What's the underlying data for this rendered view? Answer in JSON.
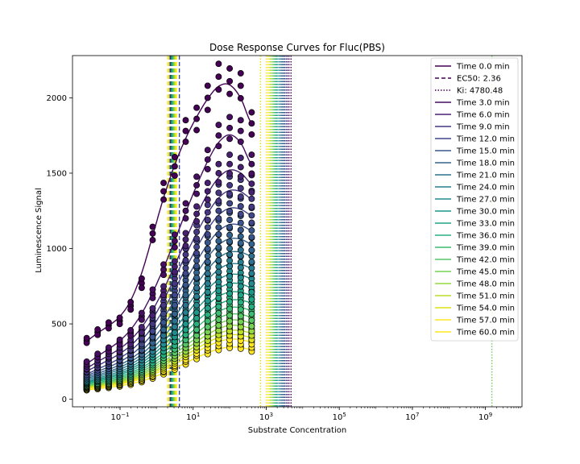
{
  "chart_data": {
    "type": "scatter",
    "title": "Dose Response Curves for Fluc(PBS)",
    "xlabel": "Substrate Concentration",
    "ylabel": "Luminescence Signal",
    "xscale": "log",
    "xlim": [
      0.005,
      10000000000.0
    ],
    "ylim": [
      -50,
      2280
    ],
    "grid": false,
    "legend_position": "top-right",
    "x_ticks": [
      {
        "value": 0.1,
        "base": "10",
        "exp": "−1"
      },
      {
        "value": 10,
        "base": "10",
        "exp": "1"
      },
      {
        "value": 1000,
        "base": "10",
        "exp": "3"
      },
      {
        "value": 100000,
        "base": "10",
        "exp": "5"
      },
      {
        "value": 10000000,
        "base": "10",
        "exp": "7"
      },
      {
        "value": 1000000000,
        "base": "10",
        "exp": "9"
      }
    ],
    "y_ticks": [
      0,
      500,
      1000,
      1500,
      2000
    ],
    "concentrations": [
      0.0122,
      0.0244,
      0.0488,
      0.0977,
      0.195,
      0.391,
      0.781,
      1.56,
      3.13,
      6.25,
      12.5,
      25,
      50,
      100,
      200,
      400
    ],
    "fit_x_max": 400,
    "colormap": "viridis",
    "legend": [
      {
        "label": "Time 0.0 min",
        "style": "solid",
        "color": "#440154"
      },
      {
        "label": "EC50: 2.36",
        "style": "dashed",
        "color": "#440154"
      },
      {
        "label": "Ki: 4780.48",
        "style": "dotted",
        "color": "#440154"
      },
      {
        "label": "Time 3.0 min",
        "style": "solid",
        "color": "#470d60"
      },
      {
        "label": "Time 6.0 min",
        "style": "solid",
        "color": "#482071"
      },
      {
        "label": "Time 9.0 min",
        "style": "solid",
        "color": "#453781"
      },
      {
        "label": "Time 12.0 min",
        "style": "solid",
        "color": "#3f4788"
      },
      {
        "label": "Time 15.0 min",
        "style": "solid",
        "color": "#39568c"
      },
      {
        "label": "Time 18.0 min",
        "style": "solid",
        "color": "#33638d"
      },
      {
        "label": "Time 21.0 min",
        "style": "solid",
        "color": "#2d718e"
      },
      {
        "label": "Time 24.0 min",
        "style": "solid",
        "color": "#287d8e"
      },
      {
        "label": "Time 27.0 min",
        "style": "solid",
        "color": "#238a8d"
      },
      {
        "label": "Time 30.0 min",
        "style": "solid",
        "color": "#1f968b"
      },
      {
        "label": "Time 33.0 min",
        "style": "solid",
        "color": "#20a386"
      },
      {
        "label": "Time 36.0 min",
        "style": "solid",
        "color": "#29af7f"
      },
      {
        "label": "Time 39.0 min",
        "style": "solid",
        "color": "#3dbc74"
      },
      {
        "label": "Time 42.0 min",
        "style": "solid",
        "color": "#56c667"
      },
      {
        "label": "Time 45.0 min",
        "style": "solid",
        "color": "#75d054"
      },
      {
        "label": "Time 48.0 min",
        "style": "solid",
        "color": "#95d840"
      },
      {
        "label": "Time 51.0 min",
        "style": "solid",
        "color": "#bade28"
      },
      {
        "label": "Time 54.0 min",
        "style": "solid",
        "color": "#dde318"
      },
      {
        "label": "Time 57.0 min",
        "style": "solid",
        "color": "#fde725"
      },
      {
        "label": "Time 60.0 min",
        "style": "solid",
        "color": "#fde725"
      }
    ],
    "series": [
      {
        "name": "Time 0.0 min",
        "color": "#440154",
        "ec50": 2.36,
        "ki": 4780.48,
        "y": [
          390,
          445,
          490,
          520,
          620,
          770,
          1100,
          1380,
          1545,
          1780,
          1860,
          2000,
          2140,
          2110,
          2080,
          1830
        ]
      },
      {
        "name": "Time 3.0 min",
        "color": "#470d60",
        "ec50": 2.8,
        "ki": 4200,
        "y": [
          240,
          290,
          330,
          380,
          440,
          550,
          700,
          860,
          1050,
          1250,
          1420,
          1590,
          1750,
          1800,
          1780,
          1560
        ]
      },
      {
        "name": "Time 6.0 min",
        "color": "#482071",
        "ec50": 2.7,
        "ki": 3800,
        "y": [
          210,
          250,
          290,
          330,
          380,
          460,
          580,
          720,
          880,
          1060,
          1230,
          1380,
          1500,
          1560,
          1540,
          1430
        ]
      },
      {
        "name": "Time 9.0 min",
        "color": "#453781",
        "ec50": 2.6,
        "ki": 3500,
        "y": [
          190,
          220,
          260,
          300,
          340,
          420,
          520,
          650,
          800,
          960,
          1110,
          1240,
          1370,
          1420,
          1400,
          1330
        ]
      },
      {
        "name": "Time 12.0 min",
        "color": "#3f4788",
        "ec50": 2.6,
        "ki": 3200,
        "y": [
          170,
          200,
          230,
          270,
          310,
          380,
          470,
          590,
          720,
          870,
          1010,
          1140,
          1250,
          1300,
          1280,
          1220
        ]
      },
      {
        "name": "Time 15.0 min",
        "color": "#39568c",
        "ec50": 2.5,
        "ki": 3000,
        "y": [
          160,
          185,
          210,
          245,
          285,
          340,
          430,
          530,
          650,
          790,
          920,
          1040,
          1140,
          1190,
          1170,
          1120
        ]
      },
      {
        "name": "Time 18.0 min",
        "color": "#33638d",
        "ec50": 2.5,
        "ki": 2800,
        "y": [
          150,
          170,
          195,
          225,
          260,
          310,
          390,
          480,
          590,
          720,
          840,
          950,
          1050,
          1090,
          1080,
          1030
        ]
      },
      {
        "name": "Time 21.0 min",
        "color": "#2d718e",
        "ec50": 2.5,
        "ki": 2600,
        "y": [
          140,
          160,
          180,
          210,
          240,
          290,
          360,
          440,
          540,
          650,
          770,
          870,
          960,
          1000,
          990,
          950
        ]
      },
      {
        "name": "Time 24.0 min",
        "color": "#287d8e",
        "ec50": 2.6,
        "ki": 2400,
        "y": [
          130,
          150,
          170,
          195,
          225,
          270,
          330,
          410,
          500,
          600,
          710,
          800,
          880,
          920,
          910,
          870
        ]
      },
      {
        "name": "Time 27.0 min",
        "color": "#238a8d",
        "ec50": 2.6,
        "ki": 2200,
        "y": [
          120,
          140,
          160,
          180,
          210,
          250,
          310,
          380,
          460,
          560,
          650,
          740,
          810,
          850,
          840,
          800
        ]
      },
      {
        "name": "Time 30.0 min",
        "color": "#1f968b",
        "ec50": 2.7,
        "ki": 2000,
        "y": [
          115,
          130,
          150,
          170,
          195,
          235,
          290,
          355,
          430,
          520,
          600,
          680,
          750,
          790,
          780,
          740
        ]
      },
      {
        "name": "Time 33.0 min",
        "color": "#20a386",
        "ec50": 2.7,
        "ki": 1900,
        "y": [
          110,
          125,
          140,
          160,
          185,
          220,
          270,
          330,
          400,
          480,
          560,
          630,
          700,
          730,
          720,
          690
        ]
      },
      {
        "name": "Time 36.0 min",
        "color": "#29af7f",
        "ec50": 2.8,
        "ki": 1800,
        "y": [
          105,
          118,
          132,
          150,
          172,
          205,
          250,
          305,
          370,
          445,
          520,
          585,
          640,
          675,
          670,
          640
        ]
      },
      {
        "name": "Time 39.0 min",
        "color": "#3dbc74",
        "ec50": 2.8,
        "ki": 1700,
        "y": [
          98,
          110,
          124,
          140,
          162,
          192,
          235,
          285,
          345,
          410,
          480,
          540,
          595,
          625,
          620,
          590
        ]
      },
      {
        "name": "Time 42.0 min",
        "color": "#56c667",
        "ec50": 2.9,
        "ki": 1600,
        "y": [
          92,
          104,
          117,
          132,
          152,
          180,
          220,
          265,
          320,
          380,
          440,
          500,
          550,
          580,
          575,
          545
        ]
      },
      {
        "name": "Time 45.0 min",
        "color": "#75d054",
        "ec50": 3.0,
        "ki": 1500,
        "y": [
          88,
          98,
          110,
          125,
          143,
          170,
          205,
          250,
          300,
          355,
          410,
          465,
          510,
          540,
          535,
          505
        ]
      },
      {
        "name": "Time 48.0 min",
        "color": "#95d840",
        "ec50": 3.1,
        "ki": 1400,
        "y": [
          84,
          93,
          104,
          118,
          135,
          160,
          193,
          235,
          280,
          330,
          385,
          435,
          475,
          505,
          500,
          470
        ]
      },
      {
        "name": "Time 51.0 min",
        "color": "#bade28",
        "ec50": 3.2,
        "ki": 1300,
        "y": [
          80,
          88,
          98,
          112,
          127,
          150,
          182,
          220,
          262,
          310,
          360,
          405,
          445,
          470,
          465,
          440
        ]
      },
      {
        "name": "Time 54.0 min",
        "color": "#dde318",
        "ec50": 3.3,
        "ki": 1200,
        "y": [
          75,
          83,
          92,
          105,
          120,
          142,
          172,
          207,
          248,
          292,
          338,
          380,
          418,
          440,
          435,
          410
        ]
      },
      {
        "name": "Time 57.0 min",
        "color": "#fde725",
        "ec50": 3.4,
        "ki": 1100,
        "y": [
          70,
          78,
          87,
          98,
          112,
          133,
          160,
          193,
          232,
          272,
          315,
          355,
          390,
          410,
          405,
          380
        ]
      },
      {
        "name": "Time 60.0 min",
        "color": "#fde725",
        "ec50": 3.5,
        "ki": 1000,
        "y": [
          62,
          70,
          78,
          88,
          100,
          118,
          143,
          172,
          205,
          240,
          278,
          312,
          340,
          355,
          350,
          330
        ]
      }
    ],
    "extra_vlines": [
      {
        "x": 2.0,
        "style": "dashed",
        "color": "#fde725"
      },
      {
        "x": 2.2,
        "style": "dashed",
        "color": "#bade28"
      },
      {
        "x": 4.2,
        "style": "dashed",
        "color": "#3f4788"
      },
      {
        "x": 700,
        "style": "dotted",
        "color": "#dde318"
      },
      {
        "x": 1500000000,
        "style": "dotted",
        "color": "#75d054"
      }
    ]
  }
}
